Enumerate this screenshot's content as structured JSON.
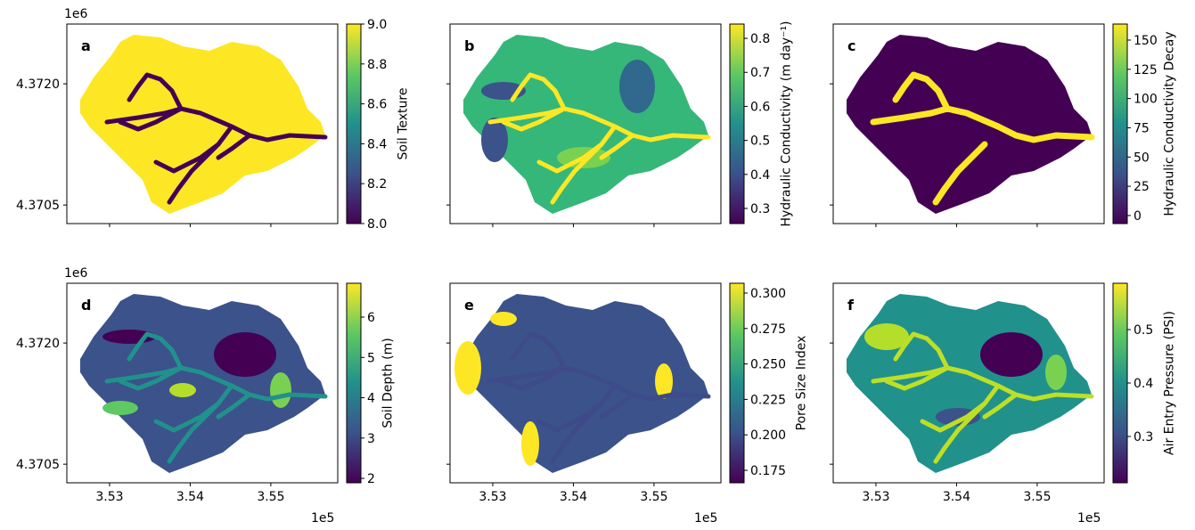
{
  "chart_data": [
    {
      "type": "map",
      "panel": "a",
      "colorbar_label": "Soil Texture",
      "fill": "#fde725",
      "stream": "#440154",
      "clim": [
        8.0,
        9.0
      ],
      "cticks": [
        {
          "value": 8.0,
          "label": "8.0"
        },
        8.2,
        8.4,
        8.6,
        8.8,
        {
          "value": 9.0,
          "label": "9.0"
        }
      ],
      "xlim": [
        3.5247,
        3.5583
      ],
      "xticks": [
        3.53,
        3.54,
        3.55
      ],
      "ylim": [
        4.37027,
        4.37274
      ],
      "yticks": [
        {
          "value": 4.372,
          "label": "4.3720"
        },
        {
          "value": 4.3705,
          "label": "4.3705"
        }
      ],
      "y_offset": "1e6"
    },
    {
      "type": "map",
      "panel": "b",
      "colorbar_label": "Hydraulic Conductivity (m day⁻¹)",
      "fill": "#35b779",
      "stream": "#fde725",
      "clim": [
        0.2555,
        0.842
      ],
      "cticks": [
        0.3,
        0.4,
        0.5,
        0.6,
        0.7,
        0.8
      ],
      "xlim": [
        3.5247,
        3.5583
      ],
      "xticks": [
        3.53,
        3.54,
        3.55
      ],
      "ylim": [
        4.37027,
        4.37274
      ],
      "yticks": [
        4.372,
        4.3705
      ]
    },
    {
      "type": "map",
      "panel": "c",
      "colorbar_label": "Hydraulic Conductivity Decay",
      "fill": "#440154",
      "stream": "#fde725",
      "clim": [
        -6.9,
        163.7
      ],
      "cticks": [
        0,
        25,
        50,
        75,
        100,
        125,
        150
      ],
      "xlim": [
        3.5247,
        3.5583
      ],
      "xticks": [
        3.53,
        3.54,
        3.55
      ],
      "ylim": [
        4.37027,
        4.37274
      ],
      "yticks": [
        4.372,
        4.3705
      ]
    },
    {
      "type": "map",
      "panel": "d",
      "colorbar_label": "Soil Depth (m)",
      "fill": "#3b528b",
      "stream": "#21918c",
      "clim": [
        1.89,
        6.84
      ],
      "cticks": [
        2,
        3,
        4,
        5,
        6
      ],
      "xlim": [
        3.5247,
        3.5583
      ],
      "xticks": [
        3.53,
        3.54,
        3.55
      ],
      "ylim": [
        4.37027,
        4.37274
      ],
      "yticks": [
        {
          "value": 4.372,
          "label": "4.3720"
        },
        {
          "value": 4.3705,
          "label": "4.3705"
        }
      ],
      "y_offset": "1e6",
      "x_offset": "1e5"
    },
    {
      "type": "map",
      "panel": "e",
      "colorbar_label": "Pore Size Index",
      "fill": "#3b528b",
      "stream": "#3e4a89",
      "clim": [
        0.1662,
        0.3069
      ],
      "cticks": [
        0.175,
        {
          "value": 0.2,
          "label": "0.200"
        },
        0.225,
        {
          "value": 0.25,
          "label": "0.250"
        },
        0.275,
        {
          "value": 0.3,
          "label": "0.300"
        }
      ],
      "xlim": [
        3.5247,
        3.5583
      ],
      "xticks": [
        3.53,
        3.54,
        3.55
      ],
      "ylim": [
        4.37027,
        4.37274
      ],
      "yticks": [
        4.372,
        4.3705
      ],
      "x_offset": "1e5"
    },
    {
      "type": "map",
      "panel": "f",
      "colorbar_label": "Air Entry Pressure (PSI)",
      "fill": "#21918c",
      "stream": "#bddf26",
      "clim": [
        0.2133,
        0.5867
      ],
      "cticks": [
        0.3,
        0.4,
        0.5
      ],
      "xlim": [
        3.5247,
        3.5583
      ],
      "xticks": [
        3.53,
        3.54,
        3.55
      ],
      "ylim": [
        4.37027,
        4.37274
      ],
      "yticks": [
        4.372,
        4.3705
      ],
      "x_offset": "1e5"
    }
  ]
}
